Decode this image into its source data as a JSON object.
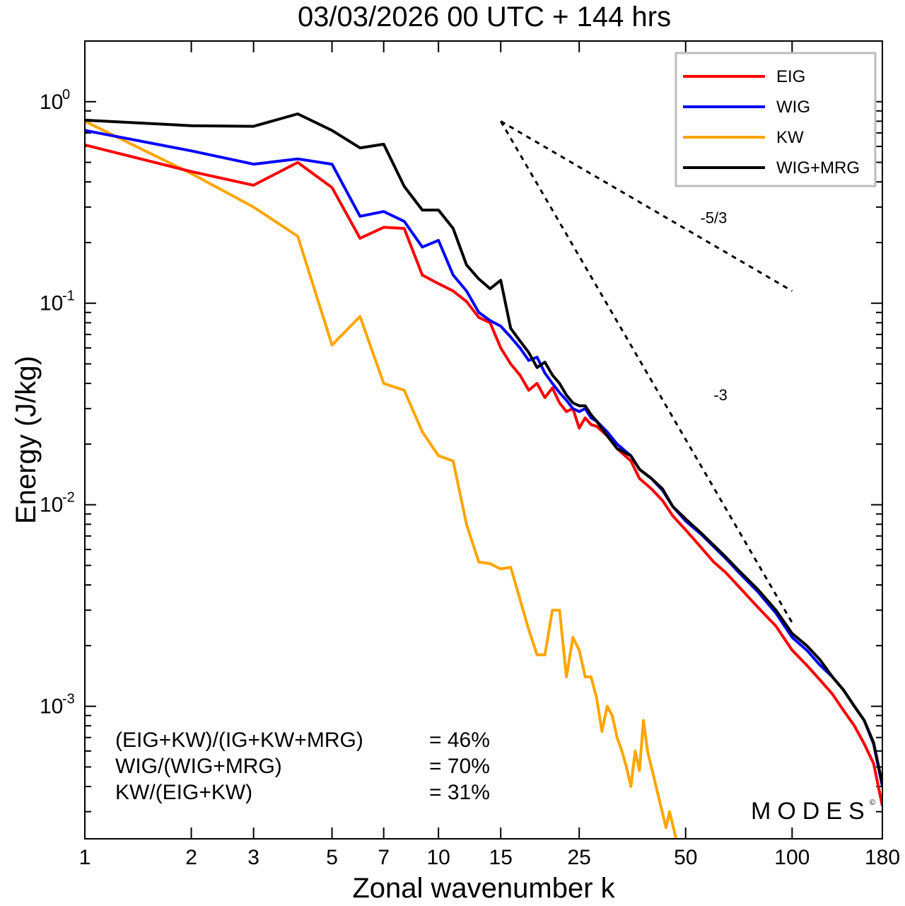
{
  "chart_data": {
    "type": "line",
    "title": "03/03/2026  00 UTC  + 144 hrs",
    "xlabel": "Zonal wavenumber k",
    "ylabel": "Energy (J/kg)",
    "xscale": "log",
    "yscale": "log",
    "xlim": [
      1,
      180
    ],
    "ylim": [
      0.00022,
      2.0
    ],
    "xticks": [
      1,
      2,
      3,
      5,
      7,
      10,
      15,
      25,
      50,
      100,
      180
    ],
    "xtick_labels": [
      "1",
      "2",
      "3",
      "5",
      "7",
      "10",
      "15",
      "25",
      "50",
      "100",
      "180"
    ],
    "yticks": [
      {
        "value": 1.0,
        "base": "10",
        "exp": "0"
      },
      {
        "value": 0.1,
        "base": "10",
        "exp": "-1"
      },
      {
        "value": 0.01,
        "base": "10",
        "exp": "-2"
      },
      {
        "value": 0.001,
        "base": "10",
        "exp": "-3"
      }
    ],
    "legend": {
      "position": "top-right",
      "entries": [
        {
          "label": "EIG",
          "color": "#ff0000"
        },
        {
          "label": "WIG",
          "color": "#0000ff"
        },
        {
          "label": "KW",
          "color": "#ffa500"
        },
        {
          "label": "WIG+MRG",
          "color": "#000000"
        }
      ]
    },
    "series": [
      {
        "name": "EIG",
        "color": "#ff0000",
        "points": [
          [
            1,
            0.61
          ],
          [
            2,
            0.45
          ],
          [
            3,
            0.385
          ],
          [
            4,
            0.5
          ],
          [
            5,
            0.375
          ],
          [
            6,
            0.21
          ],
          [
            7,
            0.238
          ],
          [
            8,
            0.235
          ],
          [
            9,
            0.138
          ],
          [
            10,
            0.125
          ],
          [
            11,
            0.115
          ],
          [
            12,
            0.102
          ],
          [
            13,
            0.085
          ],
          [
            14,
            0.08
          ],
          [
            15,
            0.06
          ],
          [
            16,
            0.05
          ],
          [
            17,
            0.044
          ],
          [
            18,
            0.037
          ],
          [
            19,
            0.04
          ],
          [
            20,
            0.034
          ],
          [
            21,
            0.038
          ],
          [
            22,
            0.032
          ],
          [
            23,
            0.029
          ],
          [
            24,
            0.03
          ],
          [
            25,
            0.024
          ],
          [
            26,
            0.027
          ],
          [
            27,
            0.025
          ],
          [
            28,
            0.0245
          ],
          [
            30,
            0.022
          ],
          [
            32,
            0.019
          ],
          [
            35,
            0.0165
          ],
          [
            37,
            0.0135
          ],
          [
            40,
            0.012
          ],
          [
            43,
            0.0105
          ],
          [
            46,
            0.0088
          ],
          [
            50,
            0.0075
          ],
          [
            55,
            0.0062
          ],
          [
            60,
            0.0052
          ],
          [
            65,
            0.0046
          ],
          [
            70,
            0.004
          ],
          [
            80,
            0.0031
          ],
          [
            90,
            0.0025
          ],
          [
            100,
            0.0019
          ],
          [
            110,
            0.0016
          ],
          [
            120,
            0.00135
          ],
          [
            130,
            0.00115
          ],
          [
            140,
            0.00095
          ],
          [
            150,
            0.0008
          ],
          [
            160,
            0.00065
          ],
          [
            170,
            0.00052
          ],
          [
            180,
            0.00032
          ]
        ]
      },
      {
        "name": "WIG",
        "color": "#0000ff",
        "points": [
          [
            1,
            0.72
          ],
          [
            2,
            0.57
          ],
          [
            3,
            0.49
          ],
          [
            4,
            0.52
          ],
          [
            5,
            0.49
          ],
          [
            6,
            0.27
          ],
          [
            7,
            0.285
          ],
          [
            8,
            0.255
          ],
          [
            9,
            0.19
          ],
          [
            10,
            0.205
          ],
          [
            11,
            0.138
          ],
          [
            12,
            0.115
          ],
          [
            13,
            0.09
          ],
          [
            14,
            0.082
          ],
          [
            15,
            0.077
          ],
          [
            16,
            0.068
          ],
          [
            17,
            0.06
          ],
          [
            18,
            0.052
          ],
          [
            19,
            0.054
          ],
          [
            20,
            0.045
          ],
          [
            21,
            0.04
          ],
          [
            22,
            0.036
          ],
          [
            23,
            0.033
          ],
          [
            24,
            0.03
          ],
          [
            25,
            0.029
          ],
          [
            26,
            0.03
          ],
          [
            27,
            0.027
          ],
          [
            28,
            0.026
          ],
          [
            30,
            0.023
          ],
          [
            32,
            0.02
          ],
          [
            35,
            0.0175
          ],
          [
            37,
            0.015
          ],
          [
            40,
            0.0135
          ],
          [
            43,
            0.0118
          ],
          [
            46,
            0.0098
          ],
          [
            50,
            0.0083
          ],
          [
            55,
            0.0072
          ],
          [
            60,
            0.0062
          ],
          [
            65,
            0.0054
          ],
          [
            70,
            0.0047
          ],
          [
            80,
            0.0037
          ],
          [
            90,
            0.0029
          ],
          [
            100,
            0.0022
          ],
          [
            110,
            0.0019
          ],
          [
            120,
            0.0016
          ],
          [
            130,
            0.0014
          ],
          [
            140,
            0.0012
          ],
          [
            150,
            0.001
          ],
          [
            160,
            0.00085
          ],
          [
            170,
            0.00065
          ],
          [
            180,
            0.0004
          ]
        ]
      },
      {
        "name": "KW",
        "color": "#ffa500",
        "points": [
          [
            1,
            0.8
          ],
          [
            2,
            0.44
          ],
          [
            3,
            0.3
          ],
          [
            4,
            0.215
          ],
          [
            5,
            0.062
          ],
          [
            6,
            0.086
          ],
          [
            7,
            0.04
          ],
          [
            8,
            0.037
          ],
          [
            9,
            0.023
          ],
          [
            10,
            0.0175
          ],
          [
            11,
            0.0165
          ],
          [
            12,
            0.008
          ],
          [
            13,
            0.0052
          ],
          [
            14,
            0.0051
          ],
          [
            15,
            0.0048
          ],
          [
            16,
            0.0049
          ],
          [
            17,
            0.0034
          ],
          [
            18,
            0.0024
          ],
          [
            19,
            0.0018
          ],
          [
            20,
            0.0018
          ],
          [
            21,
            0.003
          ],
          [
            22,
            0.003
          ],
          [
            23,
            0.0014
          ],
          [
            24,
            0.0022
          ],
          [
            25,
            0.0019
          ],
          [
            26,
            0.0014
          ],
          [
            27,
            0.0014
          ],
          [
            28,
            0.0011
          ],
          [
            29,
            0.00075
          ],
          [
            30,
            0.001
          ],
          [
            31,
            0.0009
          ],
          [
            32,
            0.0007
          ],
          [
            33,
            0.0006
          ],
          [
            34,
            0.0005
          ],
          [
            35,
            0.0004
          ],
          [
            36,
            0.0006
          ],
          [
            37,
            0.00048
          ],
          [
            38,
            0.00085
          ],
          [
            39,
            0.0006
          ],
          [
            40,
            0.0005
          ],
          [
            42,
            0.00035
          ],
          [
            44,
            0.00025
          ],
          [
            45,
            0.0003
          ],
          [
            47,
            0.00022
          ]
        ]
      },
      {
        "name": "WIG+MRG",
        "color": "#000000",
        "points": [
          [
            1,
            0.81
          ],
          [
            2,
            0.76
          ],
          [
            3,
            0.755
          ],
          [
            4,
            0.87
          ],
          [
            5,
            0.72
          ],
          [
            6,
            0.59
          ],
          [
            7,
            0.615
          ],
          [
            8,
            0.38
          ],
          [
            9,
            0.29
          ],
          [
            10,
            0.29
          ],
          [
            11,
            0.235
          ],
          [
            12,
            0.155
          ],
          [
            13,
            0.132
          ],
          [
            14,
            0.118
          ],
          [
            15,
            0.13
          ],
          [
            16,
            0.075
          ],
          [
            17,
            0.065
          ],
          [
            18,
            0.057
          ],
          [
            19,
            0.048
          ],
          [
            20,
            0.051
          ],
          [
            21,
            0.044
          ],
          [
            22,
            0.04
          ],
          [
            23,
            0.035
          ],
          [
            24,
            0.032
          ],
          [
            25,
            0.031
          ],
          [
            26,
            0.031
          ],
          [
            27,
            0.028
          ],
          [
            28,
            0.026
          ],
          [
            30,
            0.022
          ],
          [
            32,
            0.019
          ],
          [
            35,
            0.0175
          ],
          [
            37,
            0.015
          ],
          [
            40,
            0.0135
          ],
          [
            43,
            0.012
          ],
          [
            46,
            0.0098
          ],
          [
            50,
            0.0085
          ],
          [
            55,
            0.0073
          ],
          [
            60,
            0.0063
          ],
          [
            65,
            0.0055
          ],
          [
            70,
            0.0048
          ],
          [
            80,
            0.0038
          ],
          [
            90,
            0.003
          ],
          [
            100,
            0.0023
          ],
          [
            110,
            0.002
          ],
          [
            120,
            0.0017
          ],
          [
            130,
            0.0014
          ],
          [
            140,
            0.0012
          ],
          [
            150,
            0.001
          ],
          [
            160,
            0.00085
          ],
          [
            170,
            0.00066
          ],
          [
            180,
            0.00041
          ]
        ]
      }
    ],
    "reference_lines": [
      {
        "label": "-5/3",
        "points": [
          [
            15,
            0.8
          ],
          [
            100,
            0.115
          ]
        ],
        "label_at": [
          55,
          0.25
        ]
      },
      {
        "label": "-3",
        "points": [
          [
            15,
            0.8
          ],
          [
            100,
            0.0026
          ]
        ],
        "label_at": [
          60,
          0.033
        ]
      }
    ],
    "stats": [
      {
        "label": "(EIG+KW)/(IG+KW+MRG)",
        "value": "= 46%"
      },
      {
        "label": "WIG/(WIG+MRG)",
        "value": "= 70%"
      },
      {
        "label": "KW/(EIG+KW)",
        "value": "= 31%"
      }
    ],
    "watermark": "MODES",
    "watermark_mark": "©"
  }
}
